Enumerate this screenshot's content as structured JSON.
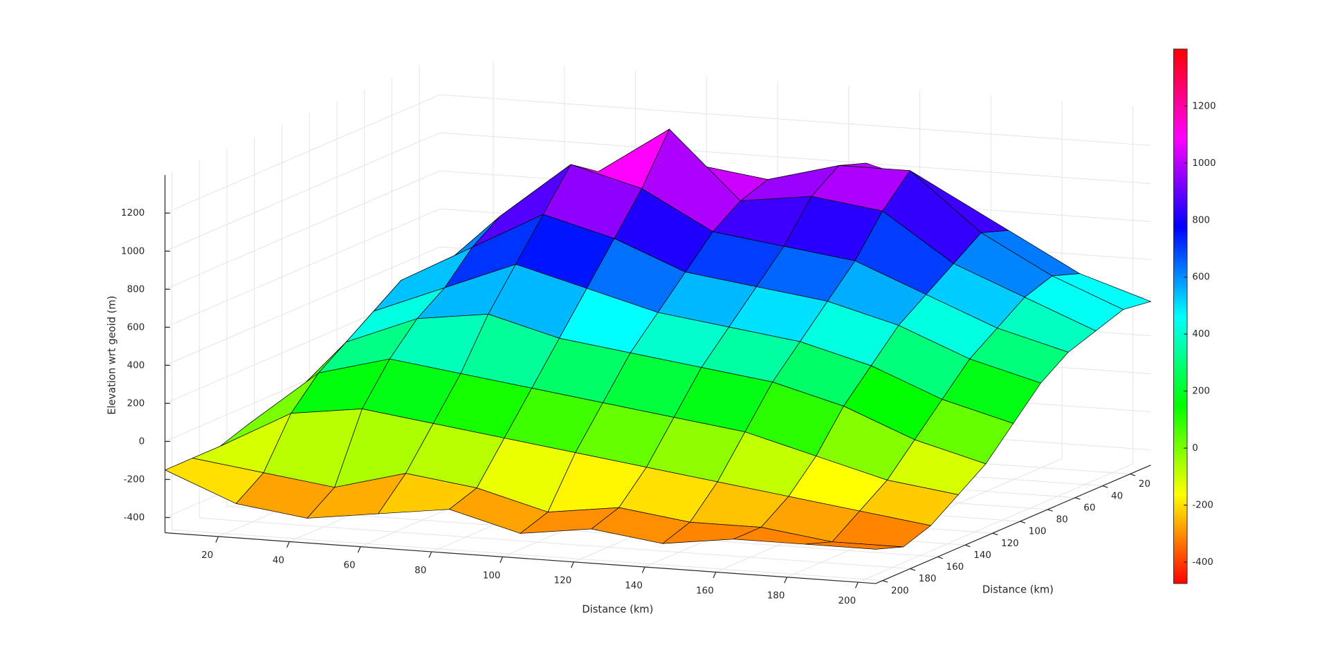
{
  "chart_data": {
    "type": "surface",
    "xlabel": "Distance (km)",
    "ylabel": "Distance (km)",
    "zlabel": "Elevation wrt geoid (m)",
    "x": [
      5,
      25,
      45,
      65,
      85,
      105,
      125,
      145,
      165,
      185,
      205
    ],
    "y": [
      5,
      25,
      45,
      65,
      85,
      105,
      125,
      145,
      165,
      185,
      205
    ],
    "z": [
      [
        200,
        250,
        350,
        600,
        800,
        900,
        1000,
        900,
        700,
        500,
        380
      ],
      [
        150,
        300,
        500,
        800,
        1000,
        950,
        1050,
        1050,
        750,
        550,
        400
      ],
      [
        100,
        350,
        700,
        1000,
        1250,
        900,
        950,
        900,
        650,
        500,
        350
      ],
      [
        50,
        450,
        800,
        1100,
        1000,
        800,
        750,
        700,
        550,
        400,
        300
      ],
      [
        0,
        500,
        700,
        900,
        800,
        650,
        600,
        550,
        450,
        300,
        200
      ],
      [
        -50,
        400,
        550,
        700,
        600,
        500,
        450,
        400,
        300,
        150,
        50
      ],
      [
        -100,
        300,
        450,
        500,
        400,
        350,
        300,
        250,
        150,
        0,
        -100
      ],
      [
        -100,
        200,
        300,
        250,
        200,
        150,
        100,
        50,
        -50,
        -150,
        -200
      ],
      [
        -150,
        50,
        100,
        50,
        0,
        -50,
        -100,
        -150,
        -200,
        -250,
        -300
      ],
      [
        -150,
        -200,
        -250,
        -150,
        -200,
        -300,
        -250,
        -300,
        -300,
        -350,
        -350
      ],
      [
        -150,
        -300,
        -350,
        -300,
        -250,
        -350,
        -300,
        -350,
        -300,
        -300,
        -300
      ]
    ],
    "xlim": [
      5,
      205
    ],
    "ylim": [
      5,
      205
    ],
    "zlim": [
      -480,
      1400
    ],
    "xticks": [
      20,
      40,
      60,
      80,
      100,
      120,
      140,
      160,
      180,
      200
    ],
    "yticks": [
      20,
      40,
      60,
      80,
      100,
      120,
      140,
      160,
      180,
      200
    ],
    "zticks": [
      -400,
      -200,
      0,
      200,
      400,
      600,
      800,
      1000,
      1200
    ],
    "clim": [
      -475,
      1400
    ],
    "cticks": [
      -400,
      -200,
      0,
      200,
      400,
      600,
      800,
      1000,
      1200
    ],
    "colormap": "hsv",
    "grid": true,
    "edge_color": "#000000"
  }
}
